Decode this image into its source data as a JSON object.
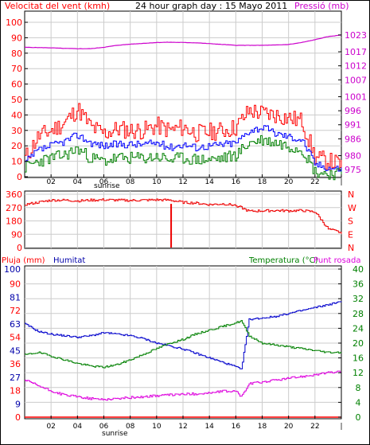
{
  "colors": {
    "wind_avg": "#0000ff",
    "wind_gust": "#ff0000",
    "wind_low": "#008000",
    "pressure": "#cc00cc",
    "direction": "#ee0000",
    "rain": "#ff0000",
    "humidity": "#0000cc",
    "temperature": "#008000",
    "dewpoint": "#dd00dd",
    "grid": "#cccccc",
    "axis_red": "#ff0000",
    "axis_blue": "#0000aa",
    "axis_green": "#008000",
    "axis_magenta": "#cc00cc"
  },
  "labels": {
    "wind_title": "Velocitat del vent (kmh)",
    "graph_title": "24 hour graph day : 15 Mayo 2011",
    "pressure_title": "Pressió (mb)",
    "rain_title": "Pluja (mm)",
    "humidity_title": "Humitat",
    "temp_title": "Temperatura (°C)",
    "dew_title": "Punt rosada",
    "sunrise_top": "sunrise",
    "sunrise_bottom": "sunrise"
  },
  "x_ticks": [
    "02",
    "04",
    "06",
    "08",
    "10",
    "12",
    "14",
    "16",
    "18",
    "20",
    "22",
    "|"
  ],
  "chart_data": [
    {
      "type": "line",
      "title": "24 hour graph day : 15 Mayo 2011",
      "xlabel": "",
      "ylabel": "Velocitat del vent (kmh)",
      "y2label": "Pressió (mb)",
      "ylim": [
        0,
        100
      ],
      "y_ticks": [
        0,
        10,
        20,
        30,
        40,
        50,
        60,
        70,
        80,
        90,
        100
      ],
      "y2lim": [
        972.5,
        1027.5
      ],
      "y2_ticks": [
        975,
        980,
        986,
        991,
        996,
        1001,
        1007,
        1012,
        1017,
        1023
      ],
      "x": [
        0,
        1,
        2,
        3,
        4,
        5,
        6,
        7,
        8,
        9,
        10,
        11,
        12,
        13,
        14,
        15,
        16,
        17,
        18,
        19,
        20,
        21,
        22,
        23,
        24
      ],
      "series": [
        {
          "key": "gust",
          "axis": "left",
          "values": [
            12,
            26,
            30,
            35,
            44,
            32,
            28,
            31,
            30,
            30,
            33,
            30,
            32,
            28,
            29,
            30,
            32,
            43,
            41,
            40,
            38,
            36,
            12,
            10,
            8
          ]
        },
        {
          "key": "avg",
          "axis": "left",
          "values": [
            9,
            17,
            20,
            23,
            27,
            22,
            20,
            21,
            21,
            21,
            22,
            19,
            21,
            19,
            20,
            21,
            22,
            30,
            32,
            28,
            26,
            24,
            8,
            6,
            5
          ]
        },
        {
          "key": "low",
          "axis": "left",
          "values": [
            6,
            10,
            12,
            14,
            18,
            12,
            10,
            12,
            12,
            12,
            13,
            11,
            12,
            11,
            11,
            12,
            14,
            22,
            24,
            22,
            20,
            18,
            3,
            2,
            2
          ]
        },
        {
          "key": "pressure",
          "axis": "right",
          "values": [
            1018.6,
            1018.5,
            1018.4,
            1018.2,
            1018.1,
            1018.1,
            1018.6,
            1019.3,
            1019.7,
            1020.0,
            1020.3,
            1020.4,
            1020.3,
            1020.2,
            1019.9,
            1019.6,
            1019.3,
            1019.3,
            1019.3,
            1019.4,
            1019.6,
            1020.3,
            1021.3,
            1022.4,
            1023.0
          ]
        }
      ]
    },
    {
      "type": "line",
      "title": "",
      "xlabel": "",
      "ylabel": "",
      "ylim": [
        0,
        360
      ],
      "y_ticks": [
        0,
        90,
        180,
        270,
        360
      ],
      "y2_ticks": [
        "N",
        "E",
        "S",
        "W",
        "N"
      ],
      "x": [
        0,
        1,
        2,
        3,
        4,
        5,
        6,
        7,
        8,
        9,
        10,
        11,
        12,
        13,
        14,
        15,
        16,
        17,
        18,
        19,
        20,
        21,
        22,
        23,
        24
      ],
      "series": [
        {
          "key": "direction",
          "values": [
            290,
            305,
            320,
            320,
            315,
            320,
            322,
            320,
            318,
            320,
            322,
            320,
            305,
            300,
            290,
            295,
            285,
            245,
            248,
            250,
            248,
            250,
            240,
            125,
            100
          ]
        }
      ],
      "annotations": [
        {
          "x": 11.1,
          "from": 295,
          "to": 0
        }
      ]
    },
    {
      "type": "line",
      "title": "",
      "xlabel": "",
      "ylabel": "Pluja (mm)",
      "ylim": [
        0,
        100
      ],
      "y_ticks": [
        0,
        10,
        20,
        30,
        40,
        50,
        60,
        70,
        80,
        90,
        100
      ],
      "y_ticks_labels": [
        "0",
        "9",
        "18",
        "27",
        "36",
        "45",
        "54",
        "63",
        "72",
        "81",
        "90",
        "100"
      ],
      "y_ticks_positions": [
        0,
        9,
        18,
        27,
        36,
        45,
        54,
        63,
        72,
        81,
        90,
        100
      ],
      "y_ticks_right_labels": [
        "0",
        "4",
        "8",
        "12",
        "16",
        "20",
        "24",
        "28",
        "32",
        "36",
        "40"
      ],
      "y_ticks_right_values": [
        0,
        4,
        8,
        12,
        16,
        20,
        24,
        28,
        32,
        36,
        40
      ],
      "y2lim": [
        0,
        40
      ],
      "x": [
        0,
        1,
        2,
        3,
        4,
        5,
        6,
        7,
        8,
        9,
        10,
        11,
        12,
        13,
        14,
        15,
        16,
        16.4,
        17,
        18,
        19,
        20,
        21,
        22,
        23,
        24
      ],
      "series": [
        {
          "key": "humidity",
          "axis": "left",
          "values": [
            63,
            58,
            56,
            55,
            54,
            55,
            57,
            56,
            55,
            53,
            50,
            48,
            46,
            43,
            40,
            37,
            34,
            32,
            66,
            67,
            68,
            70,
            72,
            74,
            76,
            78
          ]
        },
        {
          "key": "temperature",
          "axis": "right",
          "values": [
            16.8,
            17.5,
            16.5,
            15.5,
            14.5,
            13.8,
            13.5,
            14.2,
            15.5,
            17.0,
            18.5,
            20.0,
            21.0,
            22.5,
            23.5,
            24.5,
            25.5,
            26.0,
            22.0,
            20.0,
            19.5,
            19.0,
            18.5,
            18.0,
            17.5,
            17.5
          ]
        },
        {
          "key": "dewpoint",
          "axis": "right",
          "values": [
            10.0,
            8.5,
            7.0,
            6.0,
            5.5,
            5.0,
            4.8,
            5.0,
            5.3,
            5.5,
            5.8,
            6.0,
            6.2,
            6.3,
            6.5,
            7.0,
            7.0,
            5.5,
            9.0,
            9.5,
            10.0,
            10.5,
            11.0,
            11.5,
            12.0,
            12.3
          ]
        },
        {
          "key": "rain",
          "axis": "left",
          "values": [
            0,
            0,
            0,
            0,
            0,
            0,
            0,
            0,
            0,
            0,
            0,
            0,
            0,
            0,
            0,
            0,
            0,
            0,
            0,
            0,
            0,
            0,
            0,
            0,
            0,
            0
          ]
        }
      ]
    }
  ]
}
